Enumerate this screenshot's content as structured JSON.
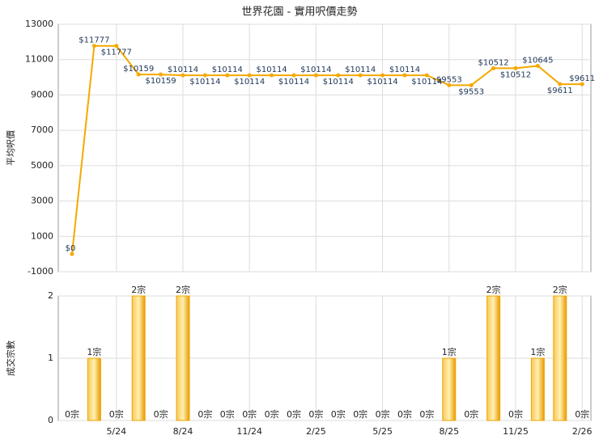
{
  "chart_data": [
    {
      "type": "line",
      "title": "世界花園 - 實用呎價走勢",
      "y_label": "平均呎價",
      "color": "#f5a800",
      "values": [
        0,
        11777,
        11777,
        10159,
        10159,
        10114,
        10114,
        10114,
        10114,
        10114,
        10114,
        10114,
        10114,
        10114,
        10114,
        10114,
        10114,
        9553,
        9553,
        10512,
        10512,
        10645,
        9611,
        9611
      ],
      "value_labels": [
        "$0",
        "$11777",
        "$11777",
        "$10159",
        "$10159",
        "$10114",
        "$10114",
        "$10114",
        "$10114",
        "$10114",
        "$10114",
        "$10114",
        "$10114",
        "$10114",
        "$10114",
        "$10114",
        "$10114",
        "$9553",
        "$9553",
        "$10512",
        "$10512",
        "$10645",
        "$9611",
        "$9611"
      ],
      "ylim": [
        -1000,
        13000
      ],
      "yticks": [
        -1000,
        1000,
        3000,
        5000,
        7000,
        9000,
        11000,
        13000
      ],
      "grid": true
    },
    {
      "type": "bar",
      "y_label": "成交宗數",
      "color": "#f0a500",
      "categories": [
        null,
        null,
        "5/24",
        null,
        null,
        "8/24",
        null,
        null,
        "11/24",
        null,
        null,
        "2/25",
        null,
        null,
        "5/25",
        null,
        null,
        "8/25",
        null,
        null,
        "11/25",
        null,
        null,
        "2/26"
      ],
      "values": [
        0,
        1,
        0,
        2,
        0,
        2,
        0,
        0,
        0,
        0,
        0,
        0,
        0,
        0,
        0,
        0,
        0,
        1,
        0,
        2,
        0,
        1,
        2,
        0
      ],
      "value_labels": [
        "0宗",
        "1宗",
        "0宗",
        "2宗",
        "0宗",
        "2宗",
        "0宗",
        "0宗",
        "0宗",
        "0宗",
        "0宗",
        "0宗",
        "0宗",
        "0宗",
        "0宗",
        "0宗",
        "0宗",
        "1宗",
        "0宗",
        "2宗",
        "0宗",
        "1宗",
        "2宗",
        "0宗"
      ],
      "ylim": [
        0,
        2
      ],
      "yticks": [
        0,
        1,
        2
      ],
      "grid": true
    }
  ]
}
